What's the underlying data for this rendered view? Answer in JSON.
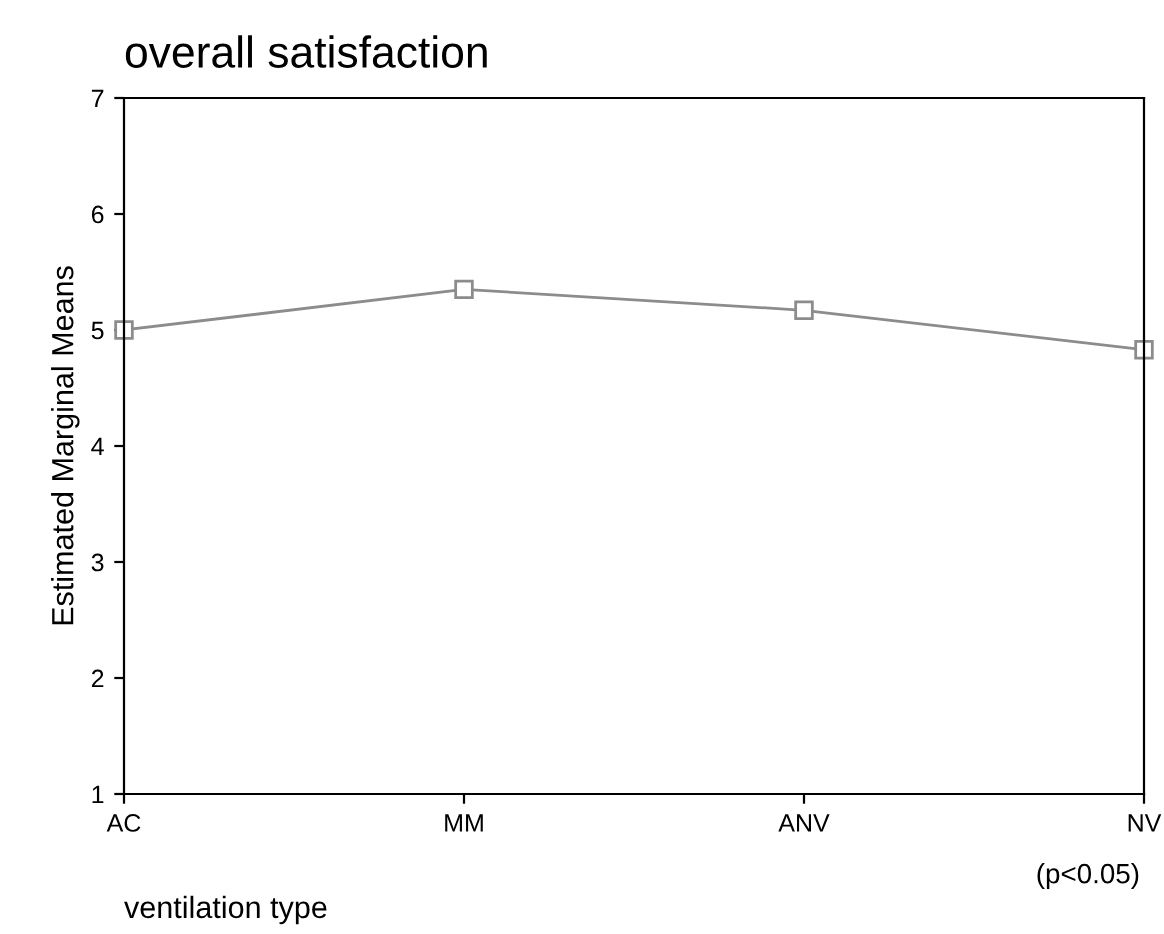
{
  "chart_data": {
    "type": "line",
    "title": "overall satisfaction",
    "xlabel": "ventilation type",
    "ylabel": "Estimated Marginal Means",
    "categories": [
      "AC",
      "MM",
      "ANV",
      "NV"
    ],
    "series": [
      {
        "color": "#8c8c8c",
        "values": [
          5.0,
          5.35,
          5.17,
          4.83
        ]
      }
    ],
    "ylim": [
      1,
      7
    ],
    "yticks": [
      1,
      2,
      3,
      4,
      5,
      6,
      7
    ],
    "marker": "square",
    "line_style": "solid",
    "grid": false,
    "legend": false,
    "annotations": [
      "(p<0.05)"
    ]
  }
}
